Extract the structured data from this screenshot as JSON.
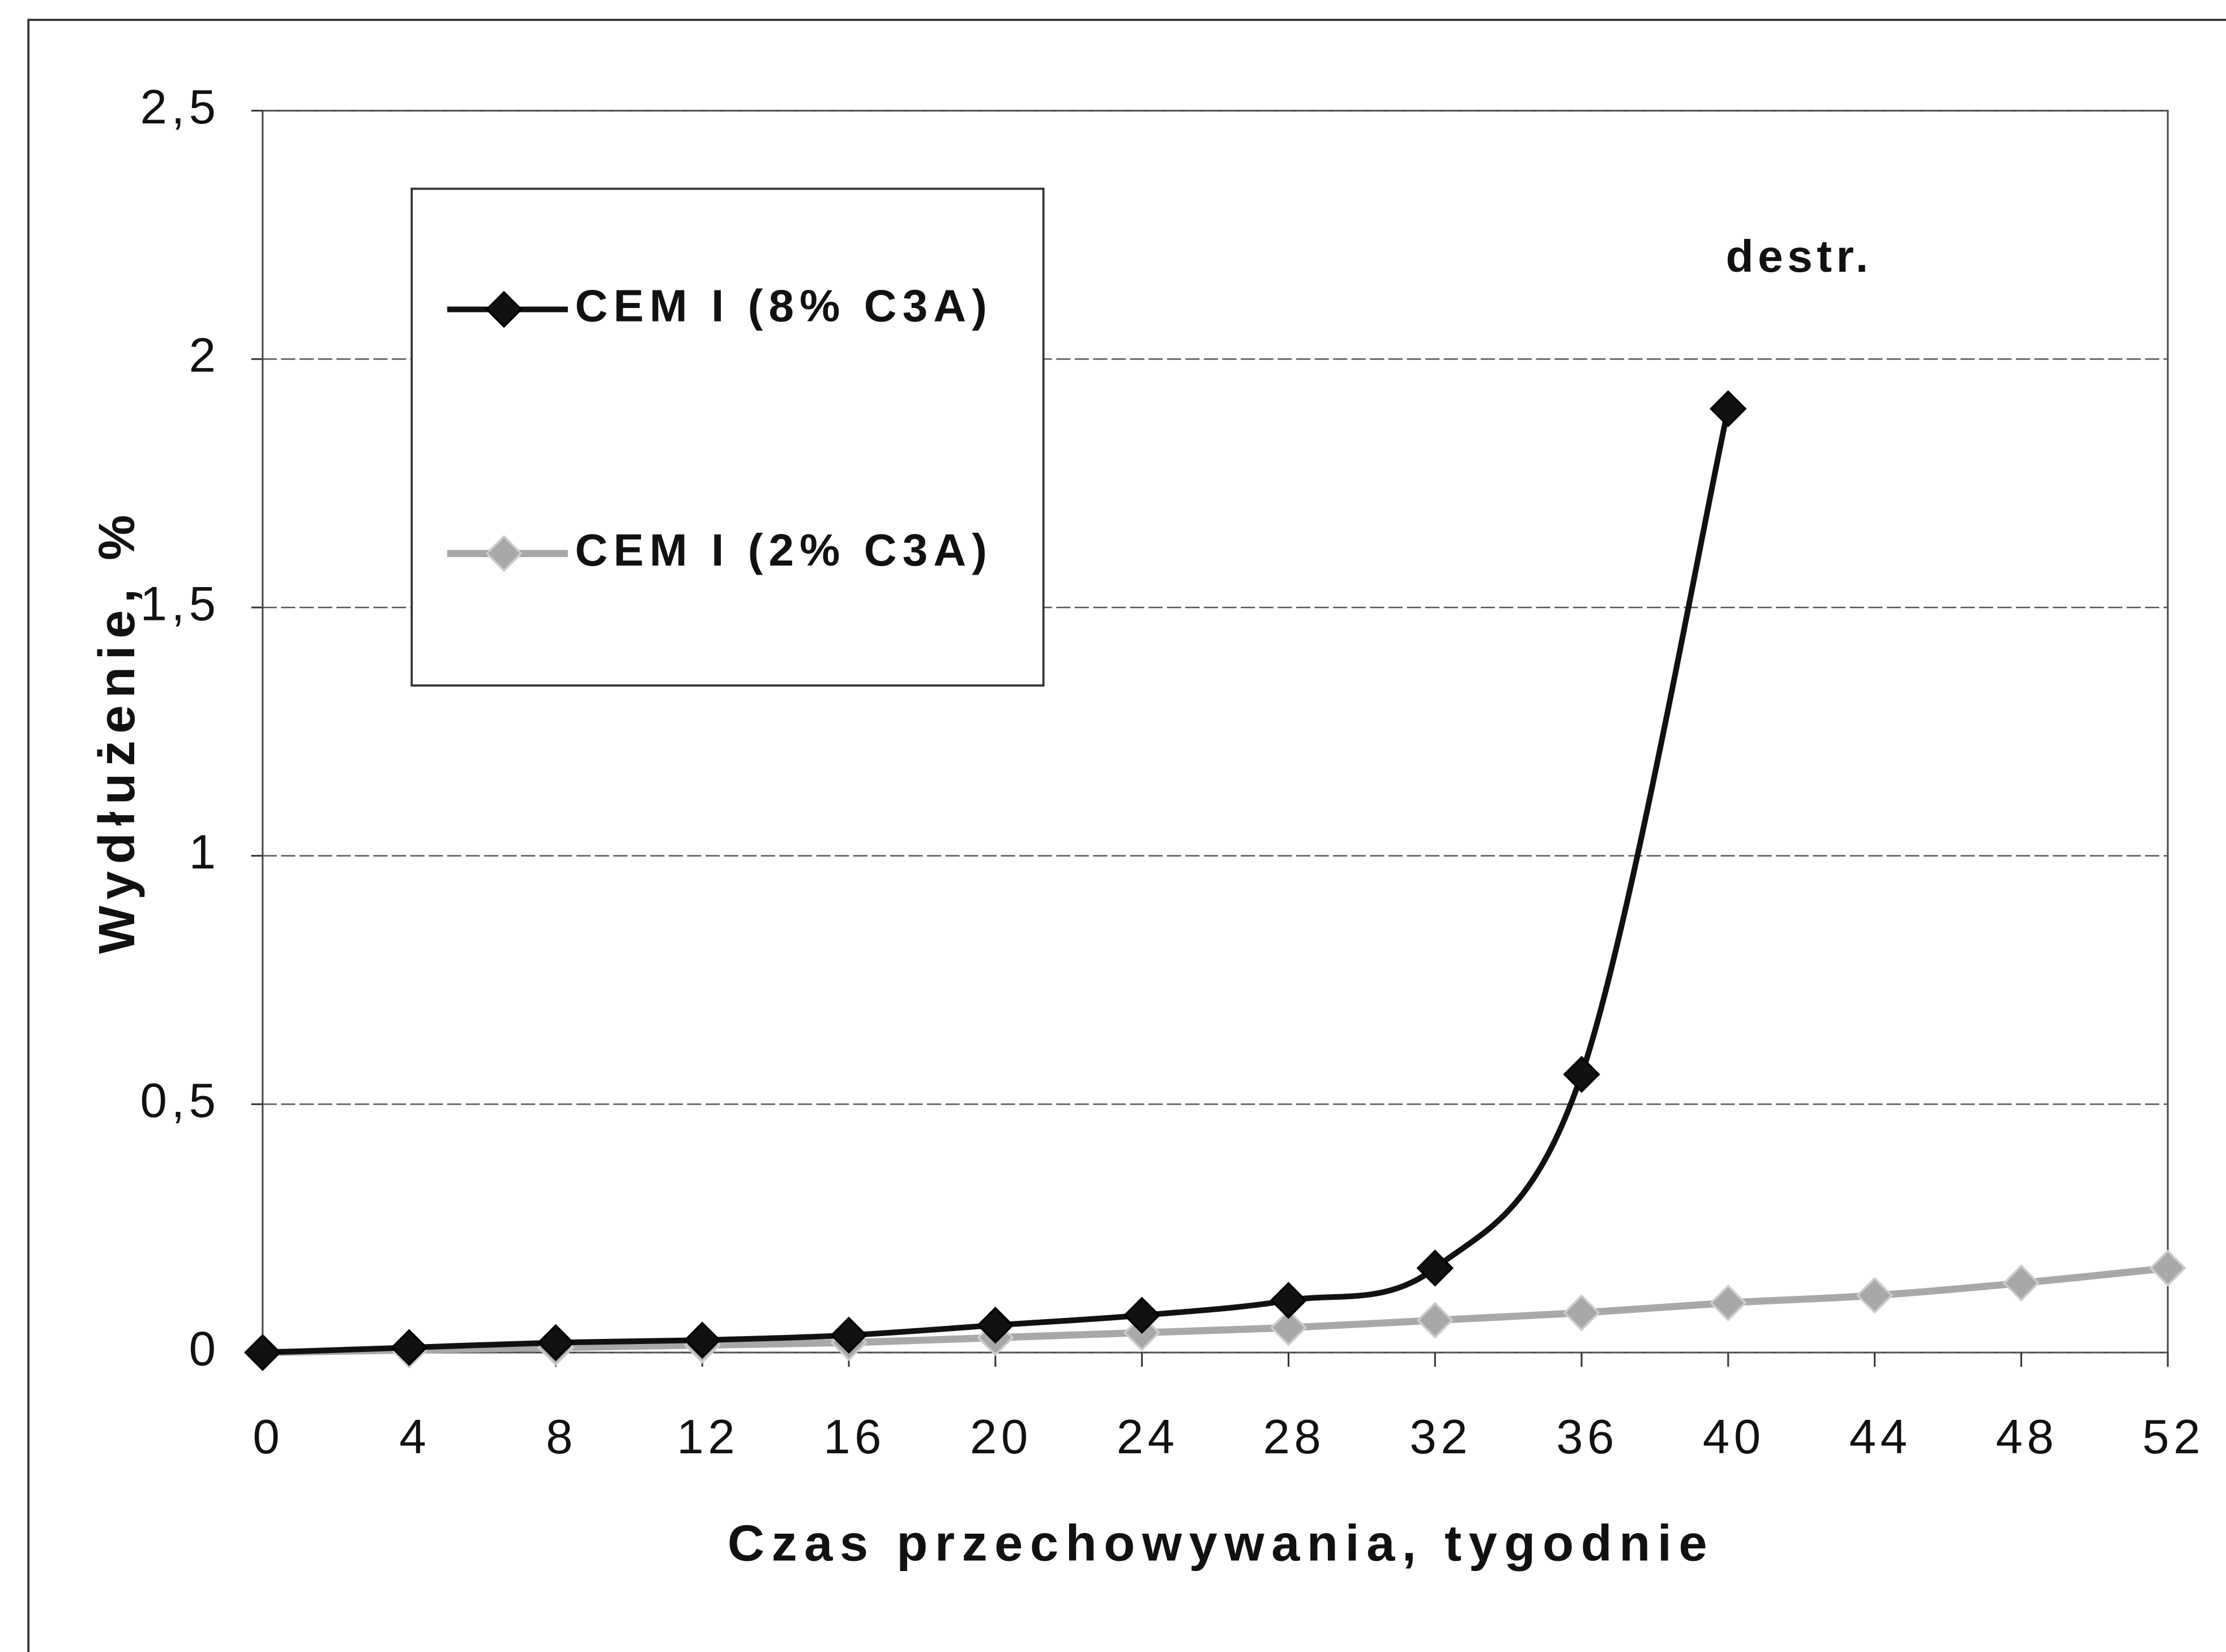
{
  "chart_data": {
    "type": "line",
    "x_label": "Czas przechowywania, tygodnie",
    "y_label": "Wydłużenie, %",
    "annotation": "destr.",
    "xlim": [
      0,
      52
    ],
    "xticks": [
      0,
      4,
      8,
      12,
      16,
      20,
      24,
      28,
      32,
      36,
      40,
      44,
      48,
      52
    ],
    "ylim": [
      0,
      2.5
    ],
    "yticks": [
      0,
      {
        "value": 0.5,
        "label": "0,5"
      },
      1,
      {
        "value": 1.5,
        "label": "1,5"
      },
      2,
      {
        "value": 2.5,
        "label": "2,5"
      }
    ],
    "grid": true,
    "legend": "upper left",
    "series": [
      {
        "name": "CEM I (8% C3A)",
        "color": "#111111",
        "x": [
          0,
          4,
          8,
          12,
          16,
          20,
          24,
          28,
          32,
          36,
          40
        ],
        "values": [
          0,
          0.01,
          0.02,
          0.025,
          0.035,
          0.055,
          0.075,
          0.105,
          0.17,
          0.56,
          1.9
        ]
      },
      {
        "name": "CEM I (2% C3A)",
        "color": "#a8a8a8",
        "x": [
          0,
          4,
          8,
          12,
          16,
          20,
          24,
          28,
          32,
          36,
          40,
          44,
          48,
          52
        ],
        "values": [
          0,
          0.005,
          0.01,
          0.015,
          0.02,
          0.03,
          0.04,
          0.05,
          0.065,
          0.08,
          0.1,
          0.115,
          0.14,
          0.17
        ]
      }
    ]
  }
}
